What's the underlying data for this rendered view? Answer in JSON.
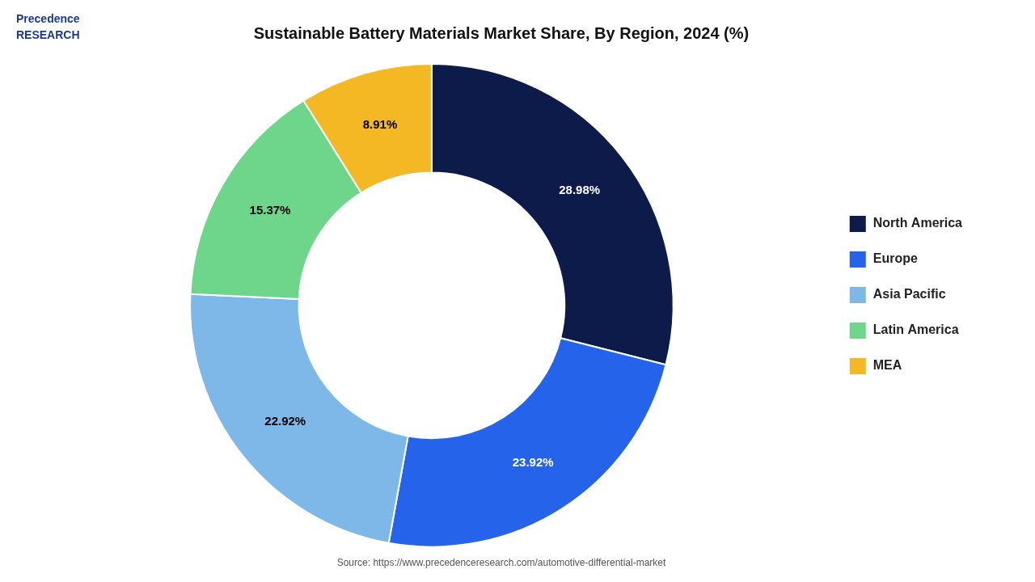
{
  "chart_data": {
    "type": "doughnut",
    "title": "Sustainable Battery Materials Market Share, By Region, 2024 (%)",
    "categories": [
      "North America",
      "Europe",
      "Asia Pacific",
      "Latin America",
      "MEA"
    ],
    "values": [
      28.98,
      23.92,
      22.92,
      15.37,
      8.91
    ],
    "value_labels": [
      "28.98%",
      "23.92%",
      "22.92%",
      "15.37%",
      "8.91%"
    ],
    "colors": [
      "#0d1b4b",
      "#2563eb",
      "#7db8e8",
      "#6dd68a",
      "#f5b825"
    ],
    "data_labels": true,
    "legend": "right",
    "annotations": [
      "Precedence\nRESEARCH",
      "Source: https://www.precedenceresearch.com/automotive-differential-market"
    ]
  }
}
